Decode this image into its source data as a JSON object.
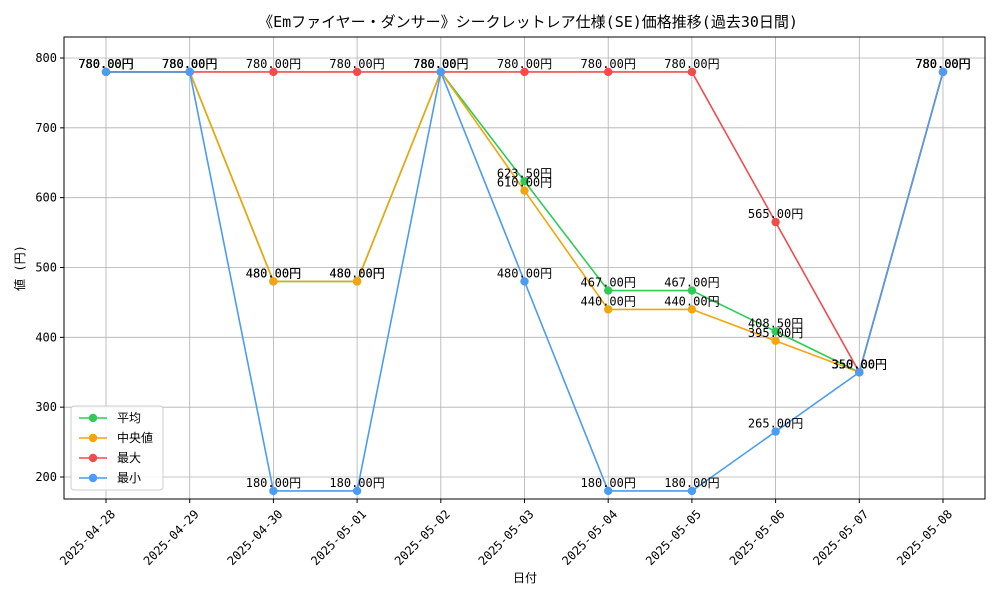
{
  "chart_data": {
    "type": "line",
    "title": "《Emファイヤー・ダンサー》シークレットレア仕様(SE)価格推移(過去30日間)",
    "xlabel": "日付",
    "ylabel": "値 (円)",
    "categories": [
      "2025-04-28",
      "2025-04-29",
      "2025-04-30",
      "2025-05-01",
      "2025-05-02",
      "2025-05-03",
      "2025-05-04",
      "2025-05-05",
      "2025-05-06",
      "2025-05-07",
      "2025-05-08"
    ],
    "ylim": [
      150,
      800
    ],
    "yticks": [
      200,
      300,
      400,
      500,
      600,
      700,
      800
    ],
    "grid": true,
    "legend_position": "bottom-left",
    "value_suffix": "円",
    "series": [
      {
        "name": "平均",
        "color": "#2ecc57",
        "values": [
          780,
          780,
          480,
          480,
          780,
          623.5,
          467,
          467,
          408.5,
          350,
          780
        ]
      },
      {
        "name": "中央値",
        "color": "#f4a40c",
        "values": [
          780,
          780,
          480,
          480,
          780,
          610,
          440,
          440,
          395,
          350,
          780
        ]
      },
      {
        "name": "最大",
        "color": "#f24b4b",
        "values": [
          780,
          780,
          780,
          780,
          780,
          780,
          780,
          780,
          565,
          350,
          780
        ]
      },
      {
        "name": "最小",
        "color": "#4b9cf2",
        "values": [
          780,
          780,
          180,
          180,
          780,
          480,
          180,
          180,
          265,
          350,
          780
        ]
      }
    ]
  }
}
